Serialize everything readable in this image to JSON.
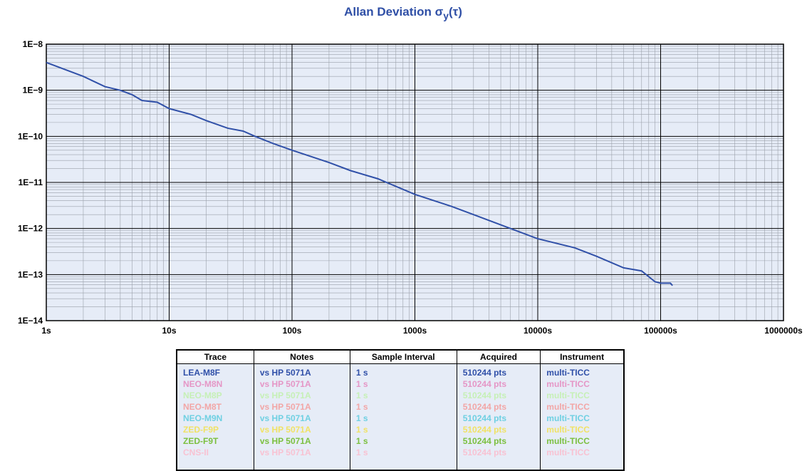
{
  "chart_data": {
    "type": "line",
    "title": "Allan Deviation σ",
    "title_subscript": "y",
    "title_suffix": "(τ)",
    "x": [
      1,
      2,
      3,
      4,
      5,
      6,
      8,
      10,
      15,
      20,
      30,
      40,
      50,
      70,
      100,
      200,
      300,
      500,
      1000,
      2000,
      3000,
      5000,
      10000,
      20000,
      30000,
      50000,
      70000,
      90000,
      100000,
      120000,
      125000
    ],
    "series": [
      {
        "name": "LEA-M8F",
        "color": "#3050a8",
        "values": [
          4e-09,
          2e-09,
          1.2e-09,
          1e-09,
          8e-10,
          6e-10,
          5.5e-10,
          4e-10,
          3e-10,
          2.2e-10,
          1.5e-10,
          1.3e-10,
          1e-10,
          7e-11,
          5e-11,
          2.7e-11,
          1.8e-11,
          1.2e-11,
          5.5e-12,
          3e-12,
          2e-12,
          1.2e-12,
          6e-13,
          3.8e-13,
          2.5e-13,
          1.4e-13,
          1.2e-13,
          7e-14,
          6.5e-14,
          6.5e-14,
          5.8e-14
        ]
      }
    ],
    "xlog": true,
    "ylog": true,
    "grid": true,
    "background": "#e6ecf7",
    "xlim": [
      1,
      1000000
    ],
    "ylim": [
      1e-14,
      1e-08
    ],
    "xticks": [
      {
        "value": 1,
        "label": "1s"
      },
      {
        "value": 10,
        "label": "10s"
      },
      {
        "value": 100,
        "label": "100s"
      },
      {
        "value": 1000,
        "label": "1000s"
      },
      {
        "value": 10000,
        "label": "10000s"
      },
      {
        "value": 100000,
        "label": "100000s"
      },
      {
        "value": 1000000,
        "label": "1000000s"
      }
    ],
    "yticks": [
      {
        "value": 1e-08,
        "label": "1E−8"
      },
      {
        "value": 1e-09,
        "label": "1E−9"
      },
      {
        "value": 1e-10,
        "label": "1E−10"
      },
      {
        "value": 1e-11,
        "label": "1E−11"
      },
      {
        "value": 1e-12,
        "label": "1E−12"
      },
      {
        "value": 1e-13,
        "label": "1E−13"
      },
      {
        "value": 1e-14,
        "label": "1E−14"
      }
    ]
  },
  "table": {
    "columns": [
      "Trace",
      "Notes",
      "Sample Interval",
      "Acquired",
      "Instrument"
    ],
    "rows": [
      {
        "color": "#3050a8",
        "cells": [
          "LEA-M8F",
          "vs HP 5071A",
          "1 s",
          "510244 pts",
          "multi-TICC"
        ]
      },
      {
        "color": "#e596c6",
        "cells": [
          "NEO-M8N",
          "vs HP 5071A",
          "1 s",
          "510244 pts",
          "multi-TICC"
        ]
      },
      {
        "color": "#c6f0b6",
        "cells": [
          "NEO-M8P",
          "vs HP 5071A",
          "1 s",
          "510244 pts",
          "multi-TICC"
        ]
      },
      {
        "color": "#f2a6a6",
        "cells": [
          "NEO-M8T",
          "vs HP 5071A",
          "1 s",
          "510244 pts",
          "multi-TICC"
        ]
      },
      {
        "color": "#6fd0e2",
        "cells": [
          "NEO-M9N",
          "vs HP 5071A",
          "1 s",
          "510244 pts",
          "multi-TICC"
        ]
      },
      {
        "color": "#f0e266",
        "cells": [
          "ZED-F9P",
          "vs HP 5071A",
          "1 s",
          "510244 pts",
          "multi-TICC"
        ]
      },
      {
        "color": "#7cc040",
        "cells": [
          "ZED-F9T",
          "vs HP 5071A",
          "1 s",
          "510244 pts",
          "multi-TICC"
        ]
      },
      {
        "color": "#f8c2d2",
        "cells": [
          "CNS-II",
          "vs HP 5071A",
          "1 s",
          "510244 pts",
          "multi-TICC"
        ]
      }
    ]
  }
}
